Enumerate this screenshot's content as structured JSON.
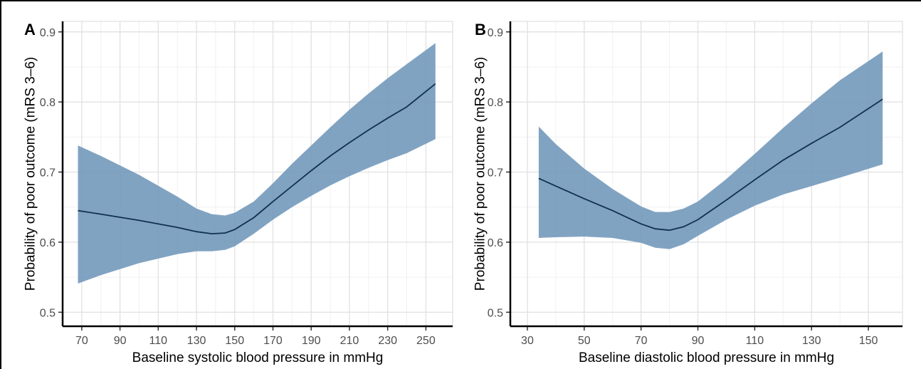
{
  "colors": {
    "band": "#6f96ba",
    "line": "#10324f",
    "grid_major": "#e3e3e3",
    "grid_minor": "#f1f1f1",
    "text": "#333333",
    "frame": "#000000"
  },
  "chart_data": [
    {
      "type": "line",
      "panel_label": "A",
      "xlabel": "Baseline systolic blood pressure in mmHg",
      "ylabel": "Probability of poor outcome (mRS 3–6)",
      "xlim": [
        60,
        264
      ],
      "ylim": [
        0.48,
        0.915
      ],
      "x_ticks": [
        70,
        90,
        110,
        130,
        150,
        170,
        190,
        210,
        230,
        250
      ],
      "y_ticks": [
        0.5,
        0.6,
        0.7,
        0.8,
        0.9
      ],
      "grid": true,
      "series": [
        {
          "x": [
            68,
            80,
            100,
            120,
            130,
            138,
            145,
            150,
            160,
            170,
            180,
            190,
            200,
            210,
            220,
            230,
            240,
            255
          ],
          "y": [
            0.645,
            0.64,
            0.631,
            0.621,
            0.615,
            0.612,
            0.613,
            0.618,
            0.635,
            0.658,
            0.68,
            0.702,
            0.723,
            0.742,
            0.76,
            0.777,
            0.793,
            0.826
          ],
          "lower": [
            0.541,
            0.553,
            0.57,
            0.583,
            0.587,
            0.587,
            0.589,
            0.594,
            0.612,
            0.632,
            0.65,
            0.666,
            0.681,
            0.694,
            0.706,
            0.717,
            0.727,
            0.747
          ],
          "upper": [
            0.738,
            0.723,
            0.696,
            0.665,
            0.648,
            0.64,
            0.638,
            0.642,
            0.658,
            0.684,
            0.712,
            0.738,
            0.764,
            0.789,
            0.812,
            0.834,
            0.854,
            0.884
          ]
        }
      ]
    },
    {
      "type": "line",
      "panel_label": "B",
      "xlabel": "Baseline diastolic blood pressure in mmHg",
      "ylabel": "Probability of poor outcome (mRS 3–6)",
      "xlim": [
        24,
        162
      ],
      "ylim": [
        0.48,
        0.915
      ],
      "x_ticks": [
        30,
        50,
        70,
        90,
        110,
        130,
        150
      ],
      "y_ticks": [
        0.5,
        0.6,
        0.7,
        0.8,
        0.9
      ],
      "grid": true,
      "series": [
        {
          "x": [
            34,
            40,
            50,
            60,
            70,
            75,
            80,
            85,
            90,
            100,
            110,
            120,
            130,
            140,
            155
          ],
          "y": [
            0.691,
            0.68,
            0.662,
            0.645,
            0.626,
            0.619,
            0.617,
            0.622,
            0.632,
            0.66,
            0.689,
            0.717,
            0.741,
            0.764,
            0.804
          ],
          "lower": [
            0.606,
            0.607,
            0.608,
            0.606,
            0.599,
            0.592,
            0.59,
            0.597,
            0.609,
            0.632,
            0.652,
            0.668,
            0.68,
            0.692,
            0.711
          ],
          "upper": [
            0.765,
            0.74,
            0.705,
            0.676,
            0.651,
            0.643,
            0.643,
            0.648,
            0.658,
            0.69,
            0.726,
            0.763,
            0.798,
            0.831,
            0.872
          ]
        }
      ]
    }
  ]
}
